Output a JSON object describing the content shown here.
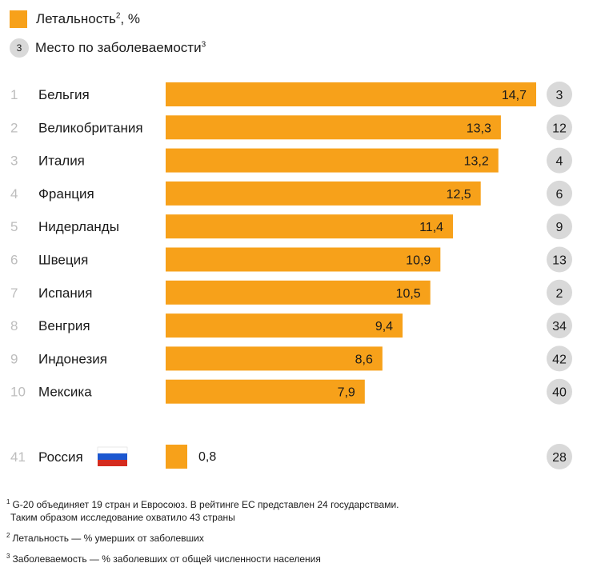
{
  "legend": {
    "lethality_label": "Летальность",
    "lethality_sup": "2",
    "lethality_suffix": ", %",
    "rank_sample": "3",
    "rank_label": "Место по заболеваемости",
    "rank_sup": "3"
  },
  "chart_data": {
    "type": "bar",
    "orientation": "horizontal",
    "categories": [
      "Бельгия",
      "Великобритания",
      "Италия",
      "Франция",
      "Нидерланды",
      "Швеция",
      "Испания",
      "Венгрия",
      "Индонезия",
      "Мексика",
      "Россия"
    ],
    "positions": [
      "1",
      "2",
      "3",
      "4",
      "5",
      "6",
      "7",
      "8",
      "9",
      "10",
      "41"
    ],
    "values": [
      14.7,
      13.3,
      13.2,
      12.5,
      11.4,
      10.9,
      10.5,
      9.4,
      8.6,
      7.9,
      0.8
    ],
    "value_labels": [
      "14,7",
      "13,3",
      "13,2",
      "12,5",
      "11,4",
      "10,9",
      "10,5",
      "9,4",
      "8,6",
      "7,9",
      "0,8"
    ],
    "morbidity_rank": [
      "3",
      "12",
      "4",
      "6",
      "9",
      "13",
      "2",
      "34",
      "42",
      "40",
      "28"
    ],
    "series_name": "Летальность, %",
    "xlim": [
      0,
      14.7
    ],
    "grid": false,
    "legend_position": "top-left"
  },
  "colors": {
    "bar": "#f7a11a",
    "circle": "#d9d9d9",
    "position_text": "#bdbdbd",
    "text": "#1a1a1a"
  },
  "footnotes": {
    "fn1_mark": "1",
    "fn1_line1": "G-20 объединяет 19 стран и Евросоюз. В рейтинге ЕС представлен 24 государствами.",
    "fn1_line2": "Таким образом исследование охватило 43 страны",
    "fn2_mark": "2",
    "fn2_text": "Летальность — % умерших от заболевших",
    "fn3_mark": "3",
    "fn3_text": "Заболеваемость — % заболевших от общей численности населения"
  },
  "russia_flag_icon": "russia-flag-icon"
}
